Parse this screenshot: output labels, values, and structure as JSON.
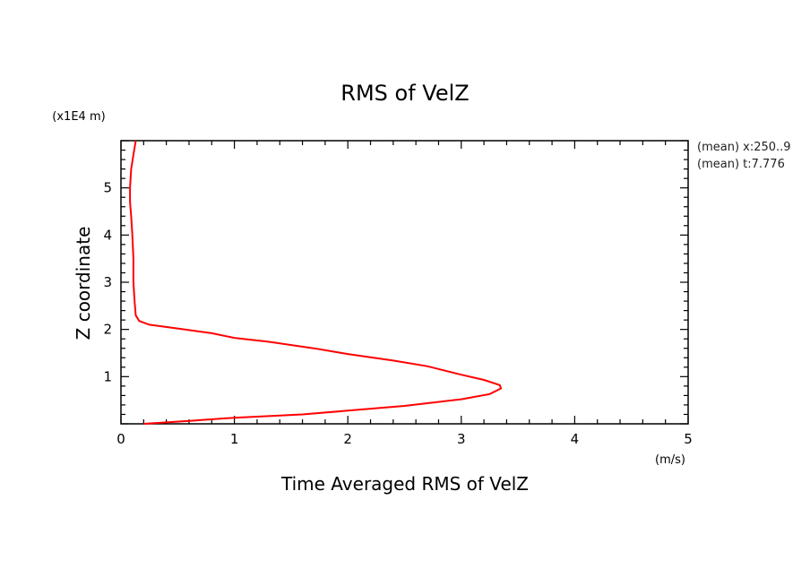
{
  "chart_data": {
    "type": "line",
    "title": "RMS of VelZ",
    "xlabel": "Time Averaged RMS of VelZ",
    "xunit": "(m/s)",
    "ylabel": "Z coordinate",
    "yunit": "(x1E4 m)",
    "xlim": [
      0,
      5
    ],
    "ylim": [
      0,
      6
    ],
    "x_ticks": [
      0,
      1,
      2,
      3,
      4,
      5
    ],
    "y_ticks": [
      1,
      2,
      3,
      4,
      5
    ],
    "x_tick_labels": [
      "0",
      "1",
      "2",
      "3",
      "4",
      "5"
    ],
    "y_tick_labels": [
      "1",
      "2",
      "3",
      "4",
      "5"
    ],
    "grid": false,
    "series": [
      {
        "color": "#ff0000",
        "points": [
          [
            0.2,
            0.0
          ],
          [
            0.6,
            0.06
          ],
          [
            1.0,
            0.13
          ],
          [
            1.6,
            0.2
          ],
          [
            2.0,
            0.28
          ],
          [
            2.5,
            0.38
          ],
          [
            3.0,
            0.52
          ],
          [
            3.25,
            0.63
          ],
          [
            3.35,
            0.75
          ],
          [
            3.34,
            0.82
          ],
          [
            3.2,
            0.93
          ],
          [
            3.0,
            1.04
          ],
          [
            2.7,
            1.22
          ],
          [
            2.4,
            1.34
          ],
          [
            2.0,
            1.48
          ],
          [
            1.7,
            1.6
          ],
          [
            1.3,
            1.74
          ],
          [
            1.0,
            1.82
          ],
          [
            0.8,
            1.92
          ],
          [
            0.5,
            2.02
          ],
          [
            0.25,
            2.1
          ],
          [
            0.16,
            2.18
          ],
          [
            0.13,
            2.3
          ],
          [
            0.12,
            2.6
          ],
          [
            0.11,
            3.0
          ],
          [
            0.11,
            3.5
          ],
          [
            0.1,
            4.0
          ],
          [
            0.09,
            4.4
          ],
          [
            0.08,
            4.7
          ],
          [
            0.08,
            5.0
          ],
          [
            0.09,
            5.4
          ],
          [
            0.11,
            5.7
          ],
          [
            0.13,
            6.0
          ]
        ]
      }
    ]
  },
  "notes": {
    "line1": "(mean) x:250..9",
    "line2": "(mean) t:7.776"
  }
}
